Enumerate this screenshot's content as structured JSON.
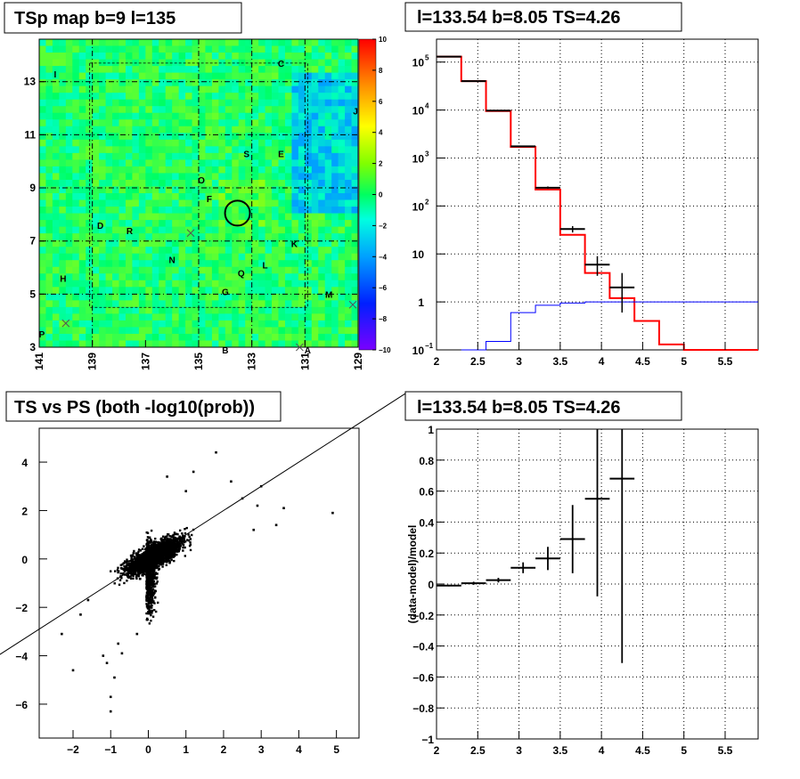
{
  "panels": {
    "tsmap_title": "TSp map b=9 l=135",
    "spectrum_title": "l=133.54 b=8.05 TS=4.26",
    "scatter_title": "TS vs PS (both -log10(prob))",
    "residual_title": "l=133.54 b=8.05 TS=4.26",
    "residual_ylabel": "(data-model)/model"
  },
  "colors": {
    "model_line": "#ff0000",
    "background_line": "#0000ff",
    "data": "#000000"
  },
  "chart_data": [
    {
      "type": "heatmap",
      "title": "TSp map b=9 l=135",
      "x_reversed": true,
      "xlim": [
        141,
        129
      ],
      "ylim": [
        3,
        14.6
      ],
      "xticks": [
        "141",
        "139",
        "137",
        "135",
        "133",
        "131",
        "129"
      ],
      "yticks": [
        "3",
        "5",
        "7",
        "9",
        "11",
        "13"
      ],
      "colorbar": {
        "range": [
          -10,
          10
        ],
        "ticks": [
          "10",
          "8",
          "6",
          "4",
          "2",
          "0",
          "−2",
          "−4",
          "−6",
          "−8",
          "−10"
        ]
      },
      "labels": [
        {
          "text": "C",
          "l": 131.9,
          "b": 13.7
        },
        {
          "text": "I",
          "l": 140.4,
          "b": 13.3
        },
        {
          "text": "S",
          "l": 133.2,
          "b": 10.3
        },
        {
          "text": "E",
          "l": 131.9,
          "b": 10.3
        },
        {
          "text": "O",
          "l": 134.9,
          "b": 9.3
        },
        {
          "text": "F",
          "l": 134.6,
          "b": 8.6
        },
        {
          "text": "D",
          "l": 138.7,
          "b": 7.6
        },
        {
          "text": "R",
          "l": 137.6,
          "b": 7.4
        },
        {
          "text": "K",
          "l": 131.4,
          "b": 6.9
        },
        {
          "text": "N",
          "l": 136.0,
          "b": 6.3
        },
        {
          "text": "L",
          "l": 132.5,
          "b": 6.1
        },
        {
          "text": "Q",
          "l": 133.4,
          "b": 5.8
        },
        {
          "text": "H",
          "l": 140.1,
          "b": 5.6
        },
        {
          "text": "M",
          "l": 130.1,
          "b": 5.0
        },
        {
          "text": "G",
          "l": 134.0,
          "b": 5.1
        },
        {
          "text": "P",
          "l": 140.9,
          "b": 3.5
        },
        {
          "text": "B",
          "l": 134.0,
          "b": 2.9
        },
        {
          "text": "A",
          "l": 130.9,
          "b": 2.9
        },
        {
          "text": "J",
          "l": 129.1,
          "b": 11.9
        }
      ],
      "crosses": [
        {
          "l": 135.3,
          "b": 7.3
        },
        {
          "l": 140.0,
          "b": 3.9
        },
        {
          "l": 129.2,
          "b": 4.6
        },
        {
          "l": 131.2,
          "b": 3.0
        }
      ],
      "circle": {
        "l": 133.54,
        "b": 8.05
      }
    },
    {
      "type": "line",
      "title": "l=133.54 b=8.05 TS=4.26",
      "log_y": true,
      "xlim": [
        2,
        5.9
      ],
      "ylim": [
        0.1,
        300000
      ],
      "xticks": [
        "2",
        "2.5",
        "3",
        "3.5",
        "4",
        "4.5",
        "5",
        "5.5"
      ],
      "yticks": [
        {
          "base": "10",
          "exp": "5",
          "value": 100000
        },
        {
          "base": "10",
          "exp": "4",
          "value": 10000
        },
        {
          "base": "10",
          "exp": "3",
          "value": 1000
        },
        {
          "base": "10",
          "exp": "2",
          "value": 100
        },
        {
          "base": "10",
          "exp": "",
          "value": 10
        },
        {
          "base": "1",
          "exp": "",
          "value": 1
        },
        {
          "base": "10",
          "exp": "−1",
          "value": 0.1
        }
      ],
      "grid": true,
      "series": [
        {
          "kind": "step",
          "color": "#ff0000",
          "edges": [
            2.0,
            2.3,
            2.6,
            2.9,
            3.2,
            3.5,
            3.8,
            4.1,
            4.4,
            4.7,
            5.0,
            5.9
          ],
          "values": [
            130000,
            40000,
            9500,
            1700,
            220,
            25,
            4,
            1.2,
            0.4,
            0.13,
            0.1
          ]
        },
        {
          "kind": "step",
          "color": "#0000ff",
          "edges": [
            2.3,
            2.6,
            2.9,
            3.2,
            3.5,
            3.8,
            5.9
          ],
          "values": [
            0.01,
            0.15,
            0.6,
            0.85,
            0.95,
            1.0
          ]
        },
        {
          "kind": "points",
          "color": "#000000",
          "points": [
            {
              "x": 2.15,
              "y": 130000,
              "xerr": 0.15,
              "ylo": 130000,
              "yhi": 130000
            },
            {
              "x": 2.45,
              "y": 40000,
              "xerr": 0.15,
              "ylo": 40000,
              "yhi": 40000
            },
            {
              "x": 2.75,
              "y": 9700,
              "xerr": 0.15,
              "ylo": 9600,
              "yhi": 9800
            },
            {
              "x": 3.05,
              "y": 1750,
              "xerr": 0.15,
              "ylo": 1700,
              "yhi": 1800
            },
            {
              "x": 3.35,
              "y": 240,
              "xerr": 0.15,
              "ylo": 230,
              "yhi": 255
            },
            {
              "x": 3.65,
              "y": 33,
              "xerr": 0.15,
              "ylo": 28,
              "yhi": 38
            },
            {
              "x": 3.95,
              "y": 6,
              "xerr": 0.15,
              "ylo": 3.5,
              "yhi": 9
            },
            {
              "x": 4.25,
              "y": 2,
              "xerr": 0.15,
              "ylo": 0.6,
              "yhi": 4
            }
          ]
        }
      ]
    },
    {
      "type": "scatter",
      "title": "TS vs PS (both -log10(prob))",
      "xlim": [
        -2.9,
        5.6
      ],
      "ylim": [
        -7.4,
        5.4
      ],
      "xticks": [
        "−2",
        "−1",
        "0",
        "1",
        "2",
        "3",
        "4",
        "5"
      ],
      "yticks": [
        "4",
        "2",
        "0",
        "−2",
        "−4",
        "−6"
      ],
      "reference_line": {
        "slope": 1,
        "intercept": 0
      },
      "outliers": [
        {
          "x": 1.8,
          "y": 4.4
        },
        {
          "x": 2.2,
          "y": 3.2
        },
        {
          "x": 3.0,
          "y": 3.0
        },
        {
          "x": 3.6,
          "y": 2.1
        },
        {
          "x": 4.9,
          "y": 1.9
        },
        {
          "x": 3.4,
          "y": 1.4
        },
        {
          "x": 2.8,
          "y": 1.2
        },
        {
          "x": 2.9,
          "y": 2.2
        },
        {
          "x": -2.0,
          "y": -4.6
        },
        {
          "x": -1.0,
          "y": -6.3
        },
        {
          "x": -1.0,
          "y": -5.7
        },
        {
          "x": -1.1,
          "y": -4.3
        },
        {
          "x": -0.9,
          "y": -4.9
        },
        {
          "x": -2.3,
          "y": -3.1
        },
        {
          "x": -1.8,
          "y": -2.3
        },
        {
          "x": -1.6,
          "y": -1.7
        },
        {
          "x": -0.8,
          "y": -3.5
        },
        {
          "x": -0.3,
          "y": -3.1
        },
        {
          "x": 0.5,
          "y": 3.4
        },
        {
          "x": 1.2,
          "y": 3.6
        },
        {
          "x": 1.0,
          "y": 2.8
        },
        {
          "x": 2.5,
          "y": 2.5
        },
        {
          "x": -1.2,
          "y": -4.0
        },
        {
          "x": -0.7,
          "y": -3.9
        }
      ]
    },
    {
      "type": "scatter",
      "title": "l=133.54 b=8.05 TS=4.26",
      "ylabel": "(data-model)/model",
      "xlim": [
        2,
        5.9
      ],
      "ylim": [
        -1,
        1
      ],
      "xticks": [
        "2",
        "2.5",
        "3",
        "3.5",
        "4",
        "4.5",
        "5",
        "5.5"
      ],
      "yticks": [
        "1",
        "0.8",
        "0.6",
        "0.4",
        "0.2",
        "0",
        "−0.2",
        "−0.4",
        "−0.6",
        "−0.8",
        "−1"
      ],
      "grid": true,
      "points": [
        {
          "x": 2.15,
          "y": -0.01,
          "xerr": 0.15,
          "ylo": -0.015,
          "yhi": -0.005
        },
        {
          "x": 2.45,
          "y": 0.005,
          "xerr": 0.15,
          "ylo": -0.005,
          "yhi": 0.015
        },
        {
          "x": 2.75,
          "y": 0.025,
          "xerr": 0.15,
          "ylo": 0.01,
          "yhi": 0.04
        },
        {
          "x": 3.05,
          "y": 0.105,
          "xerr": 0.15,
          "ylo": 0.07,
          "yhi": 0.14
        },
        {
          "x": 3.35,
          "y": 0.165,
          "xerr": 0.15,
          "ylo": 0.09,
          "yhi": 0.24
        },
        {
          "x": 3.65,
          "y": 0.29,
          "xerr": 0.15,
          "ylo": 0.07,
          "yhi": 0.51
        },
        {
          "x": 3.95,
          "y": 0.55,
          "xerr": 0.15,
          "ylo": -0.08,
          "yhi": 1.0
        },
        {
          "x": 4.25,
          "y": 0.68,
          "xerr": 0.15,
          "ylo": -0.51,
          "yhi": 1.0
        }
      ]
    }
  ]
}
